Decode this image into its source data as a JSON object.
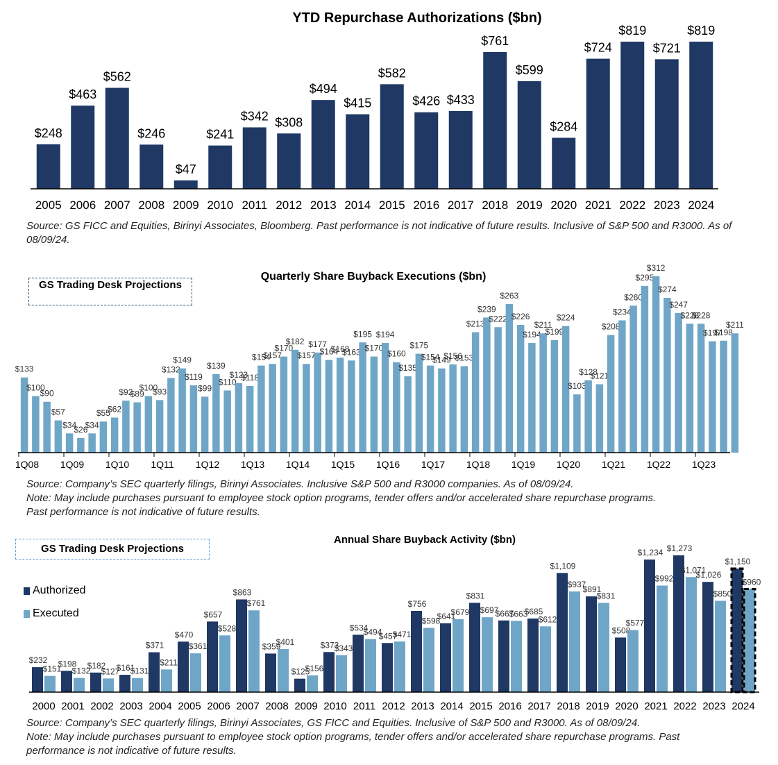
{
  "colors": {
    "authorized": "#1f3864",
    "executed": "#6fa6c8",
    "projection_box": "#1f4e79",
    "projection_box_light": "#5b9bd5"
  },
  "chart_data": [
    {
      "type": "bar",
      "title": "YTD Repurchase Authorizations ($bn)",
      "categories": [
        "2005",
        "2006",
        "2007",
        "2008",
        "2009",
        "2010",
        "2011",
        "2012",
        "2013",
        "2014",
        "2015",
        "2016",
        "2017",
        "2018",
        "2019",
        "2020",
        "2021",
        "2022",
        "2023",
        "2024"
      ],
      "values": [
        248,
        463,
        562,
        246,
        47,
        241,
        342,
        308,
        494,
        415,
        582,
        426,
        433,
        761,
        599,
        284,
        724,
        819,
        721,
        819
      ],
      "labels": [
        "$248",
        "$463",
        "$562",
        "$246",
        "$47",
        "$241",
        "$342",
        "$308",
        "$494",
        "$415",
        "$582",
        "$426",
        "$433",
        "$761",
        "$599",
        "$284",
        "$724",
        "$819",
        "$721",
        "$819"
      ],
      "ylim": [
        0,
        819
      ],
      "source": "Source: GS FICC and Equities, Birinyi Associates, Bloomberg. Past performance is not indicative of future results. Inclusive of S&P 500 and R3000. As of 08/09/24."
    },
    {
      "type": "bar",
      "title": "Quarterly Share Buyback Executions ($bn)",
      "projection_label": "GS Trading Desk Projections",
      "tick_labels": [
        "1Q08",
        "1Q09",
        "1Q10",
        "1Q11",
        "1Q12",
        "1Q13",
        "1Q14",
        "1Q15",
        "1Q16",
        "1Q17",
        "1Q18",
        "1Q19",
        "1Q20",
        "1Q21",
        "1Q22",
        "1Q23"
      ],
      "values": [
        133,
        100,
        90,
        57,
        34,
        26,
        34,
        55,
        62,
        92,
        89,
        100,
        93,
        132,
        149,
        119,
        99,
        139,
        110,
        123,
        118,
        154,
        157,
        170,
        182,
        157,
        177,
        164,
        168,
        163,
        195,
        170,
        194,
        160,
        135,
        175,
        154,
        149,
        156,
        153,
        213,
        239,
        222,
        263,
        226,
        194,
        211,
        199,
        224,
        103,
        128,
        121,
        208,
        234,
        260,
        295,
        312,
        274,
        247,
        228,
        228,
        197,
        198,
        211
      ],
      "labels": [
        "$133",
        "$100",
        "$90",
        "$57",
        "$34",
        "$26",
        "$34",
        "$55",
        "$62",
        "$92",
        "$89",
        "$100",
        "$93",
        "$132",
        "$149",
        "$119",
        "$99",
        "$139",
        "$110",
        "$123",
        "$118",
        "$154",
        "$157",
        "$170",
        "$182",
        "$157",
        "$177",
        "$164",
        "$168",
        "$163",
        "$195",
        "$170",
        "$194",
        "$160",
        "$135",
        "$175",
        "$154",
        "$149",
        "$156",
        "$153",
        "$213",
        "$239",
        "$222",
        "$263",
        "$226",
        "$194",
        "$211",
        "$199",
        "$224",
        "$103",
        "$128",
        "$121",
        "$208",
        "$234",
        "$260",
        "$295",
        "$312",
        "$274",
        "$247",
        "$228",
        "$228",
        "$197",
        "$198",
        "$211"
      ],
      "ylim": [
        0,
        312
      ],
      "source_lines": [
        "Source: Company’s SEC quarterly filings, Birinyi Associates. Inclusive S&P 500 and R3000 companies. As of 08/09/24.",
        "Note: May include purchases pursuant to employee stock option programs, tender offers and/or accelerated share repurchase programs.",
        "Past performance is not indicative of future results."
      ]
    },
    {
      "type": "bar",
      "title": "Annual   Share Buyback Activity  ($bn)",
      "projection_label": "GS Trading Desk Projections",
      "categories": [
        "2000",
        "2001",
        "2002",
        "2003",
        "2004",
        "2005",
        "2006",
        "2007",
        "2008",
        "2009",
        "2010",
        "2011",
        "2012",
        "2013",
        "2014",
        "2015",
        "2016",
        "2017",
        "2018",
        "2019",
        "2020",
        "2021",
        "2022",
        "2023",
        "2024"
      ],
      "series": [
        {
          "name": "Authorized",
          "values": [
            232,
            198,
            182,
            161,
            371,
            470,
            657,
            863,
            359,
            125,
            373,
            534,
            457,
            756,
            641,
            831,
            667,
            685,
            1109,
            891,
            508,
            1234,
            1273,
            1026,
            1150
          ],
          "labels": [
            "$232",
            "$198",
            "$182",
            "$161",
            "$371",
            "$470",
            "$657",
            "$863",
            "$359",
            "$125",
            "$373",
            "$534",
            "$457",
            "$756",
            "$641",
            "$831",
            "$667",
            "$685",
            "$1,109",
            "$891",
            "$508",
            "$1,234",
            "$1,273",
            "$1,026",
            "$1,150"
          ]
        },
        {
          "name": "Executed",
          "values": [
            151,
            132,
            127,
            131,
            211,
            361,
            528,
            761,
            401,
            156,
            343,
            494,
            471,
            598,
            679,
            697,
            663,
            612,
            937,
            831,
            577,
            992,
            1071,
            850,
            960
          ],
          "labels": [
            "$151",
            "$132",
            "$127",
            "$131",
            "$211",
            "$361",
            "$528",
            "$761",
            "$401",
            "$156",
            "$343",
            "$494",
            "$471",
            "$598",
            "$679",
            "$697",
            "$663",
            "$612",
            "$937",
            "$831",
            "$577",
            "$992",
            "$1,071",
            "$850",
            "$960"
          ]
        }
      ],
      "ylim": [
        0,
        1273
      ],
      "source_lines": [
        "Source: Company’s SEC quarterly filings, Birinyi Associates, GS FICC and Equities. Inclusive of S&P 500 and R3000. As of 08/09/24.",
        "Note: May include purchases pursuant to employee stock option programs, tender offers and/or accelerated share repurchase programs. Past",
        "performance is not indicative of future results."
      ]
    }
  ]
}
